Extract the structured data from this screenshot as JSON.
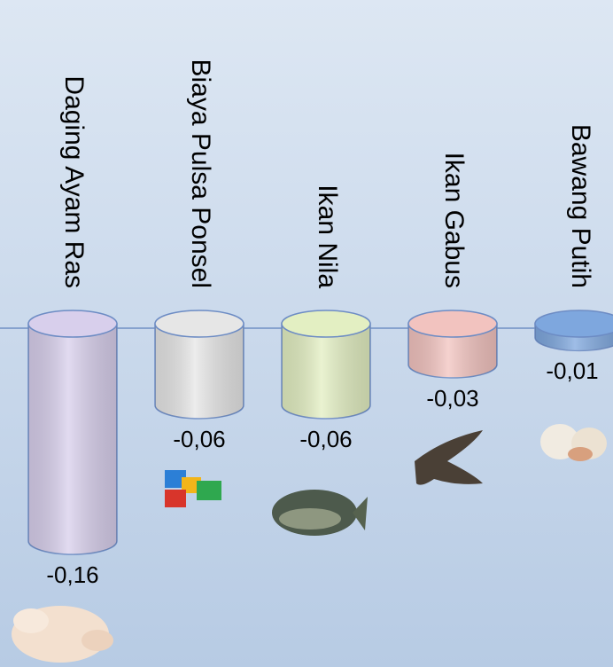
{
  "chart_data": {
    "type": "cylinder",
    "categories": [
      "Daging Ayam Ras",
      "Biaya Pulsa Ponsel",
      "Ikan Nila",
      "Ikan Gabus",
      "Bawang Putih"
    ],
    "values": [
      -0.16,
      -0.06,
      -0.06,
      -0.03,
      -0.01
    ],
    "value_labels": [
      "-0,16",
      "-0,06",
      "-0,06",
      "-0,03",
      "-0,01"
    ],
    "colors": [
      "#d8cfec",
      "#e6e6e6",
      "#e3efc2",
      "#f2c3bf",
      "#7ea7de"
    ],
    "ylim": [
      -0.16,
      0
    ]
  }
}
